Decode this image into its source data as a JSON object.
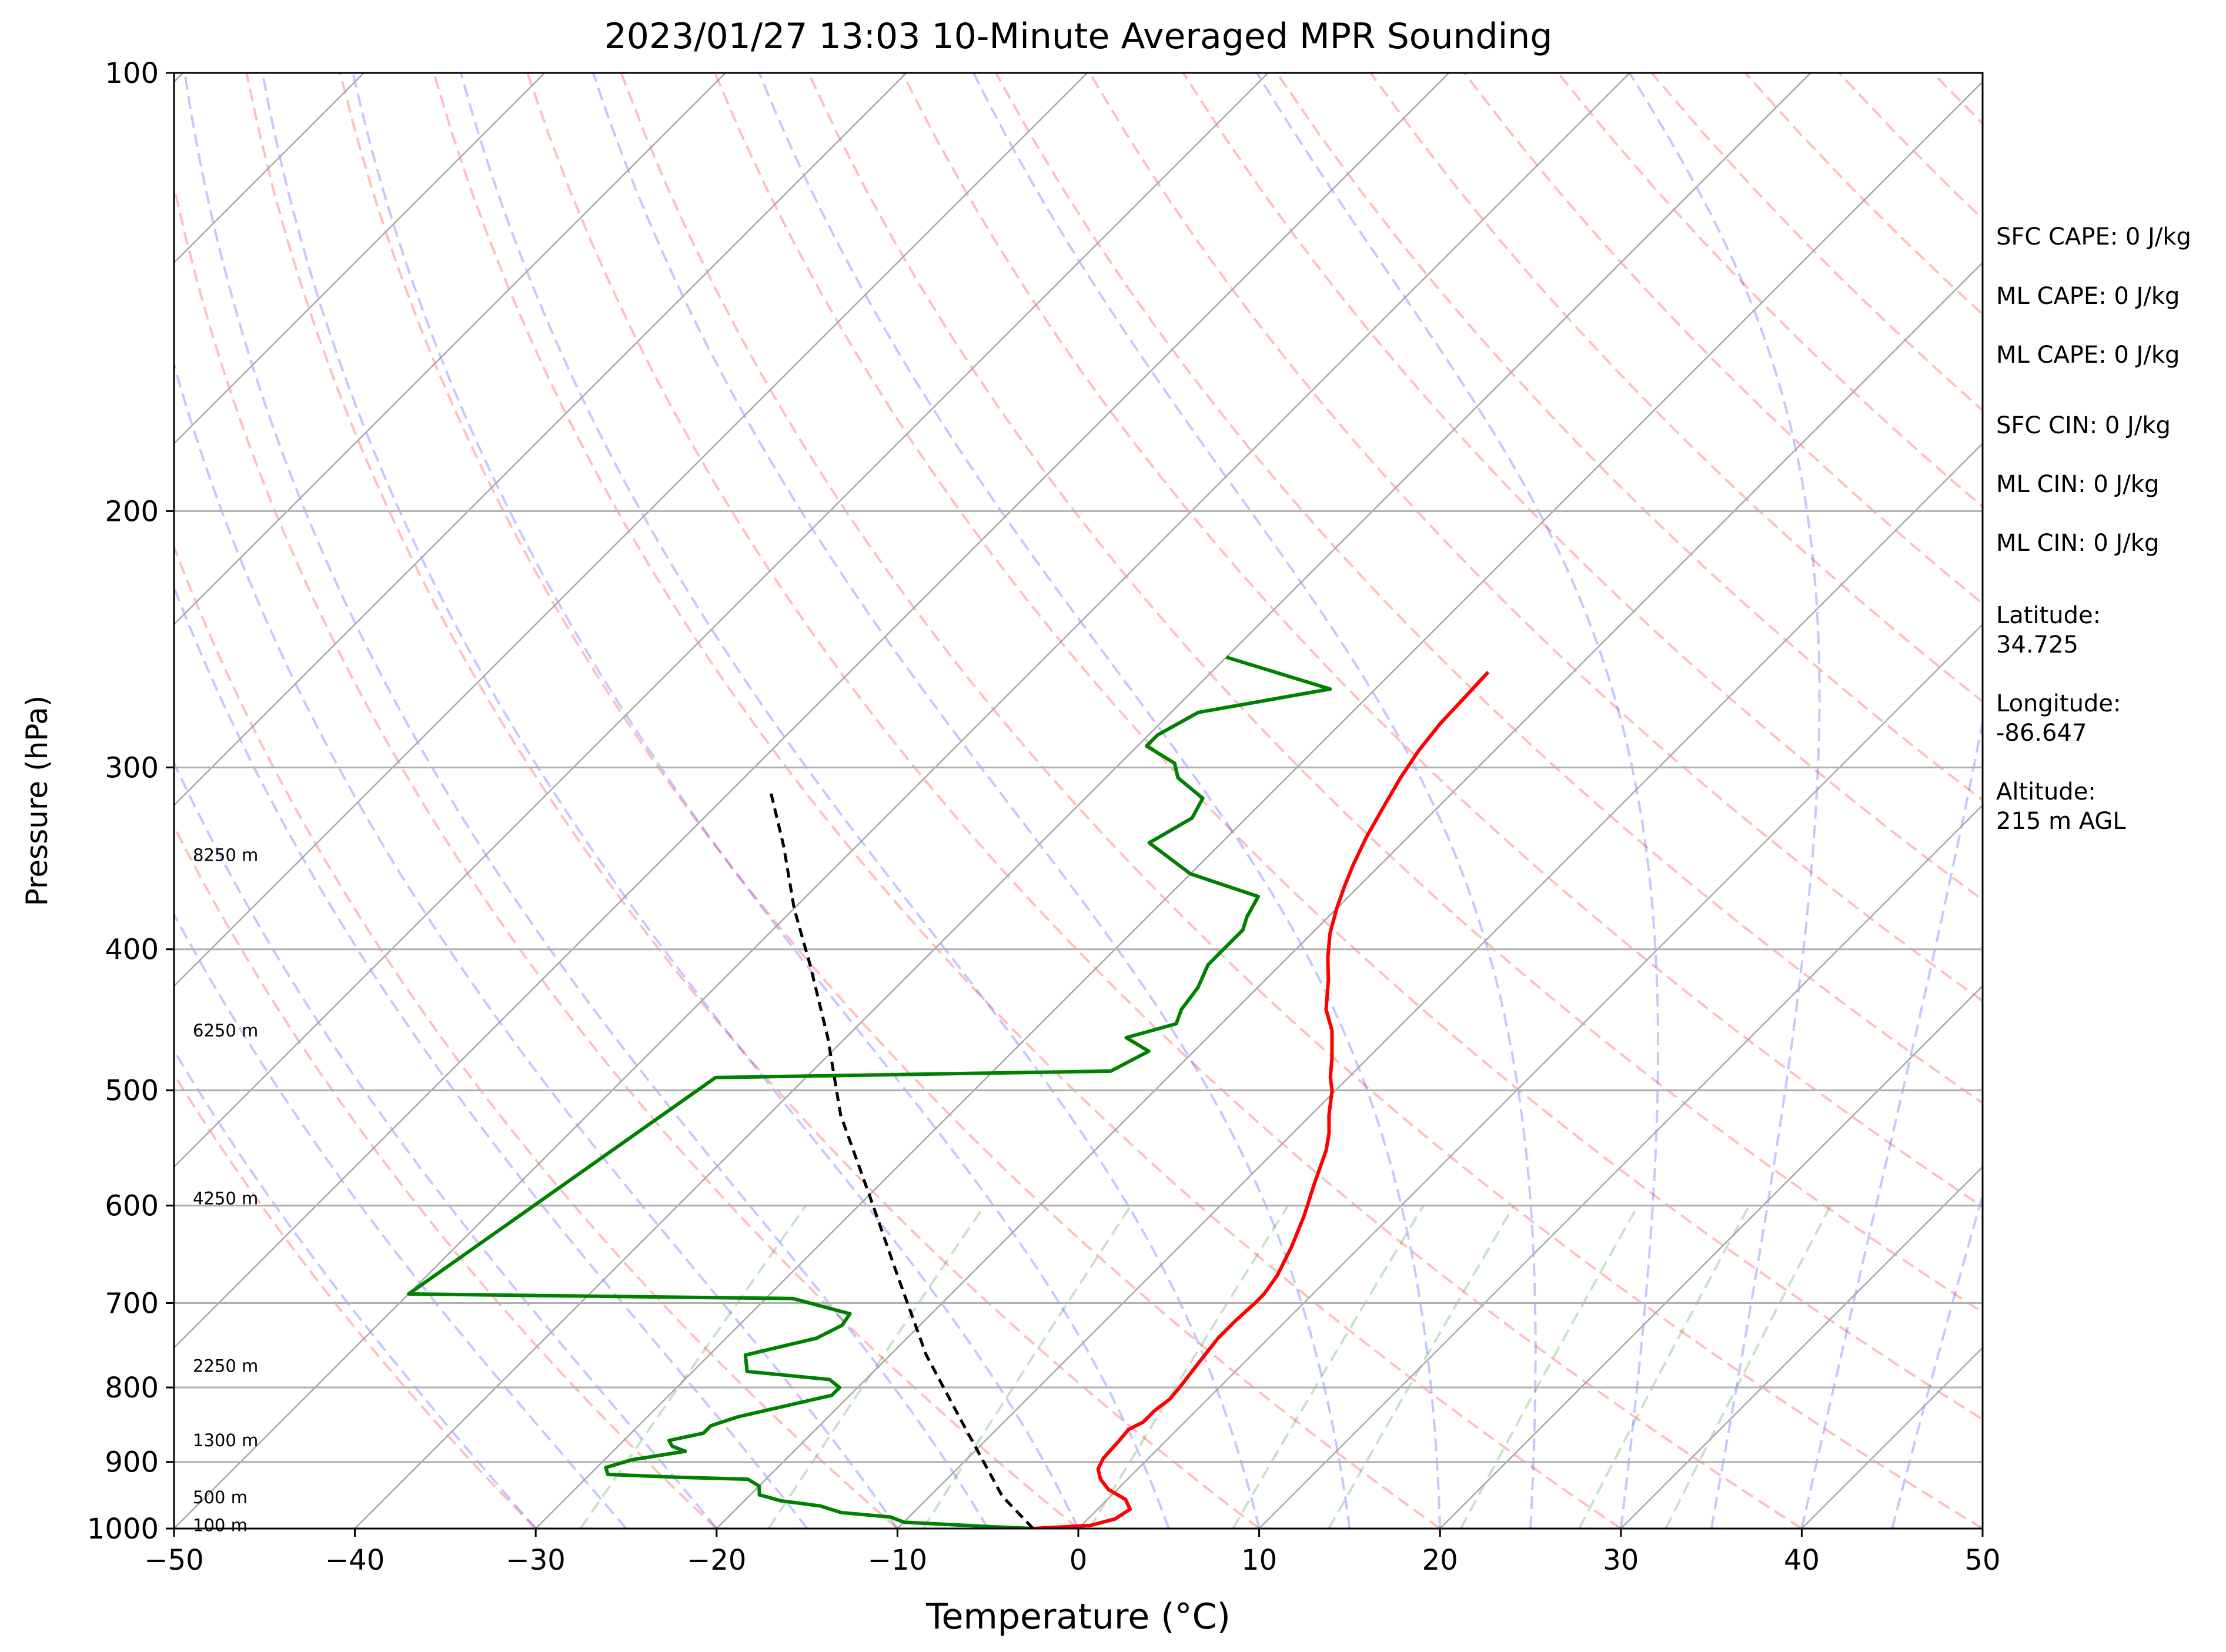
{
  "chart_data": {
    "type": "line",
    "subtype": "skew-t log-p",
    "title": "2023/01/27 13:03 10-Minute Averaged MPR Sounding",
    "xlabel": "Temperature (°C)",
    "ylabel": "Pressure (hPa)",
    "xlim": [
      -50,
      50
    ],
    "ylim": [
      1000,
      100
    ],
    "y_scale": "log",
    "x_ticks": [
      "−50",
      "−40",
      "−30",
      "−20",
      "−10",
      "0",
      "10",
      "20",
      "30",
      "40",
      "50"
    ],
    "y_ticks": [
      "100",
      "200",
      "300",
      "400",
      "500",
      "600",
      "700",
      "800",
      "900",
      "1000"
    ],
    "grid": true,
    "height_labels": [
      {
        "pressure": 993,
        "label": "100 m"
      },
      {
        "pressure": 950,
        "label": "500 m"
      },
      {
        "pressure": 868,
        "label": "1300 m"
      },
      {
        "pressure": 772,
        "label": "2250 m"
      },
      {
        "pressure": 592,
        "label": "4250 m"
      },
      {
        "pressure": 454,
        "label": "6250 m"
      },
      {
        "pressure": 344,
        "label": "8250 m"
      }
    ],
    "series": [
      {
        "color": "#ff0000",
        "points": [
          [
            -2.5,
            1000
          ],
          [
            0.5,
            995
          ],
          [
            1.5,
            985
          ],
          [
            1.8,
            970
          ],
          [
            1.0,
            955
          ],
          [
            -0.5,
            940
          ],
          [
            -1.5,
            925
          ],
          [
            -2.2,
            910
          ],
          [
            -2.5,
            895
          ],
          [
            -2.6,
            870
          ],
          [
            -2.7,
            855
          ],
          [
            -2.3,
            845
          ],
          [
            -2.3,
            830
          ],
          [
            -2.1,
            815
          ],
          [
            -2.2,
            800
          ],
          [
            -2.4,
            780
          ],
          [
            -2.6,
            760
          ],
          [
            -2.8,
            740
          ],
          [
            -2.8,
            720
          ],
          [
            -2.7,
            700
          ],
          [
            -2.7,
            690
          ],
          [
            -3,
            670
          ],
          [
            -3.8,
            640
          ],
          [
            -4.8,
            610
          ],
          [
            -6,
            580
          ],
          [
            -7.2,
            550
          ],
          [
            -8,
            535
          ],
          [
            -9,
            520
          ],
          [
            -10.2,
            500
          ],
          [
            -11,
            490
          ],
          [
            -12,
            475
          ],
          [
            -13.5,
            455
          ],
          [
            -15,
            440
          ],
          [
            -16.5,
            420
          ],
          [
            -17.8,
            405
          ],
          [
            -19,
            390
          ],
          [
            -20,
            375
          ],
          [
            -20.8,
            362
          ],
          [
            -21.5,
            350
          ],
          [
            -22.3,
            335
          ],
          [
            -23,
            320
          ],
          [
            -23.7,
            305
          ],
          [
            -24.2,
            292
          ],
          [
            -24.5,
            280
          ],
          [
            -24.6,
            268
          ],
          [
            -24.7,
            258
          ]
        ]
      },
      {
        "color": "#008000",
        "points": [
          [
            -2.5,
            1000
          ],
          [
            -5,
            997
          ],
          [
            -10,
            990
          ],
          [
            -11,
            982
          ],
          [
            -14,
            975
          ],
          [
            -15.5,
            965
          ],
          [
            -18,
            957
          ],
          [
            -19.5,
            948
          ],
          [
            -20,
            935
          ],
          [
            -21,
            925
          ],
          [
            -25,
            922
          ],
          [
            -29,
            918
          ],
          [
            -29.5,
            908
          ],
          [
            -28.5,
            897
          ],
          [
            -26,
            885
          ],
          [
            -27,
            878
          ],
          [
            -27.5,
            870
          ],
          [
            -26,
            860
          ],
          [
            -26,
            850
          ],
          [
            -25,
            838
          ],
          [
            -21,
            810
          ],
          [
            -21,
            800
          ],
          [
            -22,
            790
          ],
          [
            -27,
            780
          ],
          [
            -28,
            760
          ],
          [
            -25,
            740
          ],
          [
            -24.3,
            725
          ],
          [
            -24.5,
            712
          ],
          [
            -28.5,
            695
          ],
          [
            -50,
            690
          ],
          [
            -45,
            490
          ],
          [
            -23.5,
            485
          ],
          [
            -22.5,
            470
          ],
          [
            -24.5,
            460
          ],
          [
            -22.5,
            450
          ],
          [
            -23,
            440
          ],
          [
            -23.3,
            425
          ],
          [
            -24,
            410
          ],
          [
            -24,
            398
          ],
          [
            -24,
            388
          ],
          [
            -24.5,
            380
          ],
          [
            -25,
            368
          ],
          [
            -30,
            355
          ],
          [
            -34,
            338
          ],
          [
            -33,
            325
          ],
          [
            -33.5,
            315
          ],
          [
            -36,
            305
          ],
          [
            -37,
            298
          ],
          [
            -39.5,
            290
          ],
          [
            -39.5,
            285
          ],
          [
            -38.5,
            275
          ],
          [
            -32.5,
            265
          ],
          [
            -40,
            252
          ]
        ]
      },
      {
        "color": "#000000",
        "dashed": true,
        "points": [
          [
            -2.5,
            1000
          ],
          [
            -6,
            950
          ],
          [
            -12,
            850
          ],
          [
            -18,
            760
          ],
          [
            -24,
            670
          ],
          [
            -30,
            590
          ],
          [
            -36,
            520
          ],
          [
            -41,
            460
          ],
          [
            -46,
            410
          ],
          [
            -50,
            375
          ],
          [
            -54,
            340
          ],
          [
            -58,
            310
          ]
        ]
      }
    ]
  },
  "side_text": [
    "SFC CAPE: 0 J/kg",
    "ML CAPE: 0 J/kg",
    "ML CAPE: 0 J/kg",
    "SFC CIN: 0 J/kg",
    "ML CIN: 0 J/kg",
    "ML CIN: 0 J/kg",
    "Latitude:",
    "34.725",
    "Longitude:",
    "-86.647",
    "Altitude:",
    "215 m AGL"
  ]
}
